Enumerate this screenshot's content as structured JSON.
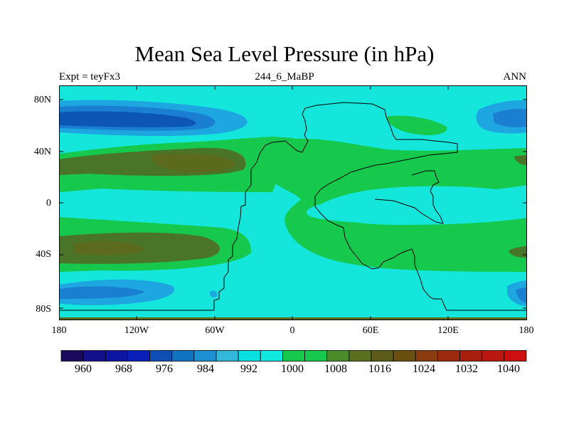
{
  "title": "Mean Sea Level Pressure (in hPa)",
  "subtitle_left": "Expt = teyFx3",
  "subtitle_center": "244_6_MaBP",
  "subtitle_right": "ANN",
  "lat_labels": [
    "80N",
    "40N",
    "0",
    "40S",
    "80S"
  ],
  "lon_labels": [
    "180",
    "120W",
    "60W",
    "0",
    "60E",
    "120E",
    "180"
  ],
  "colorbar": {
    "labels": [
      "960",
      "968",
      "976",
      "984",
      "992",
      "1000",
      "1008",
      "1016",
      "1024",
      "1032",
      "1040"
    ],
    "colors": [
      "#1a0a5e",
      "#14108c",
      "#0c14a0",
      "#0a1fb8",
      "#0d4fb4",
      "#1172c0",
      "#1e8fd0",
      "#33b8dc",
      "#0be0e0",
      "#10e8e0",
      "#16c84c",
      "#16c84c",
      "#4a8c28",
      "#5a6e20",
      "#5c5c18",
      "#6a5010",
      "#8a3c10",
      "#9a2a0c",
      "#a81e0c",
      "#b81810",
      "#cc1010"
    ]
  },
  "map_colors": {
    "ocean": "#14e6dc",
    "green": "#16c84c",
    "olive": "#4a7428",
    "brown_olive": "#5c6a1e",
    "blue_light": "#1ea6e0",
    "blue_mid": "#1a7fd0",
    "blue_dark": "#0e56b4"
  }
}
